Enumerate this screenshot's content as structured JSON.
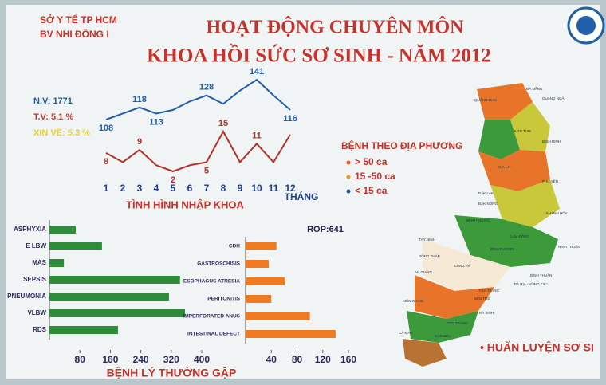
{
  "header": {
    "org": "SỞ Y TẾ TP HCM",
    "hospital": "BV NHI ĐỒNG I",
    "title": "HOẠT ĐỘNG CHUYÊN MÔN",
    "subtitle": "KHOA HỒI SỨC SƠ SINH - NĂM 2012",
    "stats": [
      "N.V: 1771",
      "T.V: 5.1 %",
      "XIN VỀ: 5.3 %"
    ]
  },
  "chart_data": [
    {
      "type": "line",
      "title": "TÌNH HÌNH NHẬP KHOA",
      "xlabel": "THÁNG",
      "x": [
        1,
        2,
        3,
        4,
        5,
        6,
        7,
        8,
        9,
        10,
        11,
        12
      ],
      "series": [
        {
          "color": "#1f5fa8",
          "values": [
            108,
            113,
            118,
            113,
            116,
            123,
            128,
            121,
            132,
            141,
            128,
            116
          ],
          "value_labels": [
            "108",
            null,
            "118",
            "113",
            null,
            null,
            "128",
            null,
            null,
            "141",
            null,
            "116"
          ]
        },
        {
          "color": "#b0302a",
          "values": [
            8,
            5,
            9,
            4,
            2,
            4,
            5,
            15,
            5,
            11,
            5,
            14
          ],
          "value_labels": [
            "8",
            null,
            "9",
            null,
            "2",
            null,
            "5",
            "15",
            null,
            "11",
            null,
            null
          ]
        }
      ]
    },
    {
      "type": "hbar",
      "title": "BỆNH LÝ THƯỜNG GẶP",
      "color": "#2e8b3a",
      "categories": [
        "ASPHYXIA",
        "E LBW",
        "MAS",
        "SEPSIS",
        "PNEUMONIA",
        "VLBW",
        "RDS"
      ],
      "values": [
        69,
        138,
        38,
        343,
        314,
        356,
        180
      ],
      "xlim": [
        0,
        400
      ],
      "xticks": [
        80,
        160,
        240,
        320,
        400
      ]
    },
    {
      "type": "hbar",
      "annotation": "ROP:641",
      "color": "#f07a22",
      "categories": [
        "CDH",
        "GASTROSCHISIS",
        "ESOPHAGUS ATRESIA",
        "PERITONITIS",
        "IMPERFORATED ANUS",
        "INTESTINAL DEFECT"
      ],
      "values": [
        48,
        36,
        61,
        40,
        100,
        140
      ],
      "xlim": [
        0,
        160
      ],
      "xticks": [
        40,
        80,
        120,
        160
      ]
    }
  ],
  "map": {
    "title": "BỆNH THEO ĐỊA PHƯƠNG",
    "legend": [
      {
        "label": "> 50  ca",
        "color": "#e8541e"
      },
      {
        "label": "15 -50 ca",
        "color": "#e89a2a"
      },
      {
        "label": "< 15  ca",
        "color": "#1f4fa8"
      }
    ],
    "provinces": [
      "ĐÀ NẴNG",
      "QUẢNG NAM",
      "QUẢNG NGÃI",
      "KON TUM",
      "BÌNH ĐỊNH",
      "GIA LAI",
      "PHÚ YÊN",
      "ĐẮK LẮK",
      "ĐẮK NÔNG",
      "KHÁNH HÒA",
      "BÌNH PHƯỚC",
      "LÂM ĐỒNG",
      "TÂY NINH",
      "NINH THUẬN",
      "ĐỒNG THÁP",
      "BÌNH DƯƠNG",
      "LONG AN",
      "BÌNH THUẬN",
      "AN GIANG",
      "BÀ RỊA - VŨNG TÀU",
      "TIỀN GIANG",
      "KIÊN GIANG",
      "BẾN TRE",
      "TRÀ VINH",
      "SÓC TRĂNG",
      "CÀ MAU",
      "BẠC LIÊU"
    ],
    "footer": "• HUẤN LUYỆN SƠ SI"
  }
}
